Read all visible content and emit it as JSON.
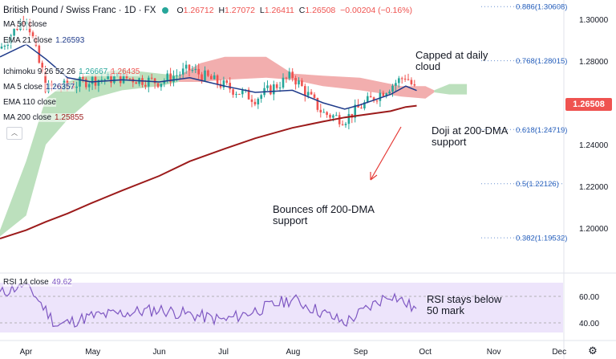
{
  "header": {
    "symbol": "British Pound / Swiss Franc · 1D · FX",
    "ohlc": {
      "o_label": "O",
      "o": "1.26712",
      "h_label": "H",
      "h": "1.27072",
      "l_label": "L",
      "l": "1.26411",
      "c_label": "C",
      "c": "1.26508",
      "change": "−0.00204 (−0.16%)"
    }
  },
  "legend": {
    "ma50": {
      "label": "MA 50 close",
      "value": ""
    },
    "ema21": {
      "label": "EMA 21 close",
      "value": "1.26593"
    },
    "ichimoku": {
      "label": "Ichimoku 9 26 52 26",
      "value1": "1.26667",
      "value2": "1.26435"
    },
    "ma5": {
      "label": "MA 5 close",
      "value": "1.26357"
    },
    "ema110": {
      "label": "EMA 110 close",
      "value": ""
    },
    "ma200": {
      "label": "MA 200 close",
      "value": "1.25855"
    }
  },
  "annotations": {
    "capped": "Capped at daily cloud",
    "doji": "Doji at 200-DMA support",
    "bounces": "Bounces off 200-DMA support",
    "rsi_note": "RSI stays below 50 mark"
  },
  "price_axis": {
    "ticks": [
      "1.30000",
      "1.28000",
      "1.26000",
      "1.24000",
      "1.22000",
      "1.20000"
    ],
    "current": "1.26508"
  },
  "fib_levels": [
    {
      "label": "0.886(1.30608)",
      "value": 1.30608
    },
    {
      "label": "0.768(1.28015)",
      "value": 1.28015
    },
    {
      "label": "0.618(1.24719)",
      "value": 1.24719
    },
    {
      "label": "0.5(1.22126)",
      "value": 1.22126
    },
    {
      "label": "0.382(1.19532)",
      "value": 1.19532
    }
  ],
  "rsi": {
    "label": "RSI 14 close",
    "value": "49.62",
    "ticks": [
      "60.00",
      "40.00"
    ]
  },
  "time_axis": [
    "Apr",
    "May",
    "Jun",
    "Jul",
    "Aug",
    "Sep",
    "Oct",
    "Nov",
    "Dec"
  ],
  "colors": {
    "up": "#26a69a",
    "down": "#ef5350",
    "ma200": "#9c1b1b",
    "ema21": "#1e3a8a",
    "cloud_bull": "#a5d6a7",
    "cloud_bear": "#ef9a9a",
    "rsi_line": "#7e57c2",
    "rsi_band": "#ede4fb",
    "fib": "#2a62bd"
  },
  "chart_data": {
    "type": "line",
    "x": [
      "2021-03-20",
      "2021-04-01",
      "2021-04-10",
      "2021-04-20",
      "2021-05-01",
      "2021-05-15",
      "2021-06-01",
      "2021-06-15",
      "2021-07-01",
      "2021-07-15",
      "2021-08-01",
      "2021-08-15",
      "2021-08-25",
      "2021-09-01",
      "2021-09-15",
      "2021-09-22",
      "2021-09-27"
    ],
    "series": [
      {
        "name": "Close",
        "values": [
          1.286,
          1.302,
          1.267,
          1.268,
          1.271,
          1.272,
          1.27,
          1.276,
          1.268,
          1.262,
          1.273,
          1.255,
          1.252,
          1.258,
          1.268,
          1.273,
          1.265
        ]
      },
      {
        "name": "MA 200",
        "values": [
          1.195,
          1.199,
          1.203,
          1.207,
          1.212,
          1.218,
          1.225,
          1.232,
          1.238,
          1.243,
          1.248,
          1.251,
          1.253,
          1.254,
          1.256,
          1.258,
          1.2586
        ]
      },
      {
        "name": "EMA 21",
        "values": [
          1.282,
          1.288,
          1.281,
          1.272,
          1.27,
          1.271,
          1.27,
          1.272,
          1.268,
          1.265,
          1.266,
          1.26,
          1.257,
          1.259,
          1.264,
          1.268,
          1.2659
        ]
      }
    ],
    "rsi": {
      "x": [
        "2021-03-20",
        "2021-04-01",
        "2021-04-15",
        "2021-05-01",
        "2021-06-01",
        "2021-07-01",
        "2021-08-01",
        "2021-08-25",
        "2021-09-15",
        "2021-09-27"
      ],
      "values": [
        62,
        70,
        38,
        45,
        50,
        42,
        58,
        40,
        62,
        49.62
      ]
    },
    "ylim": [
      1.19,
      1.31
    ],
    "xlabel": "",
    "ylabel": ""
  }
}
